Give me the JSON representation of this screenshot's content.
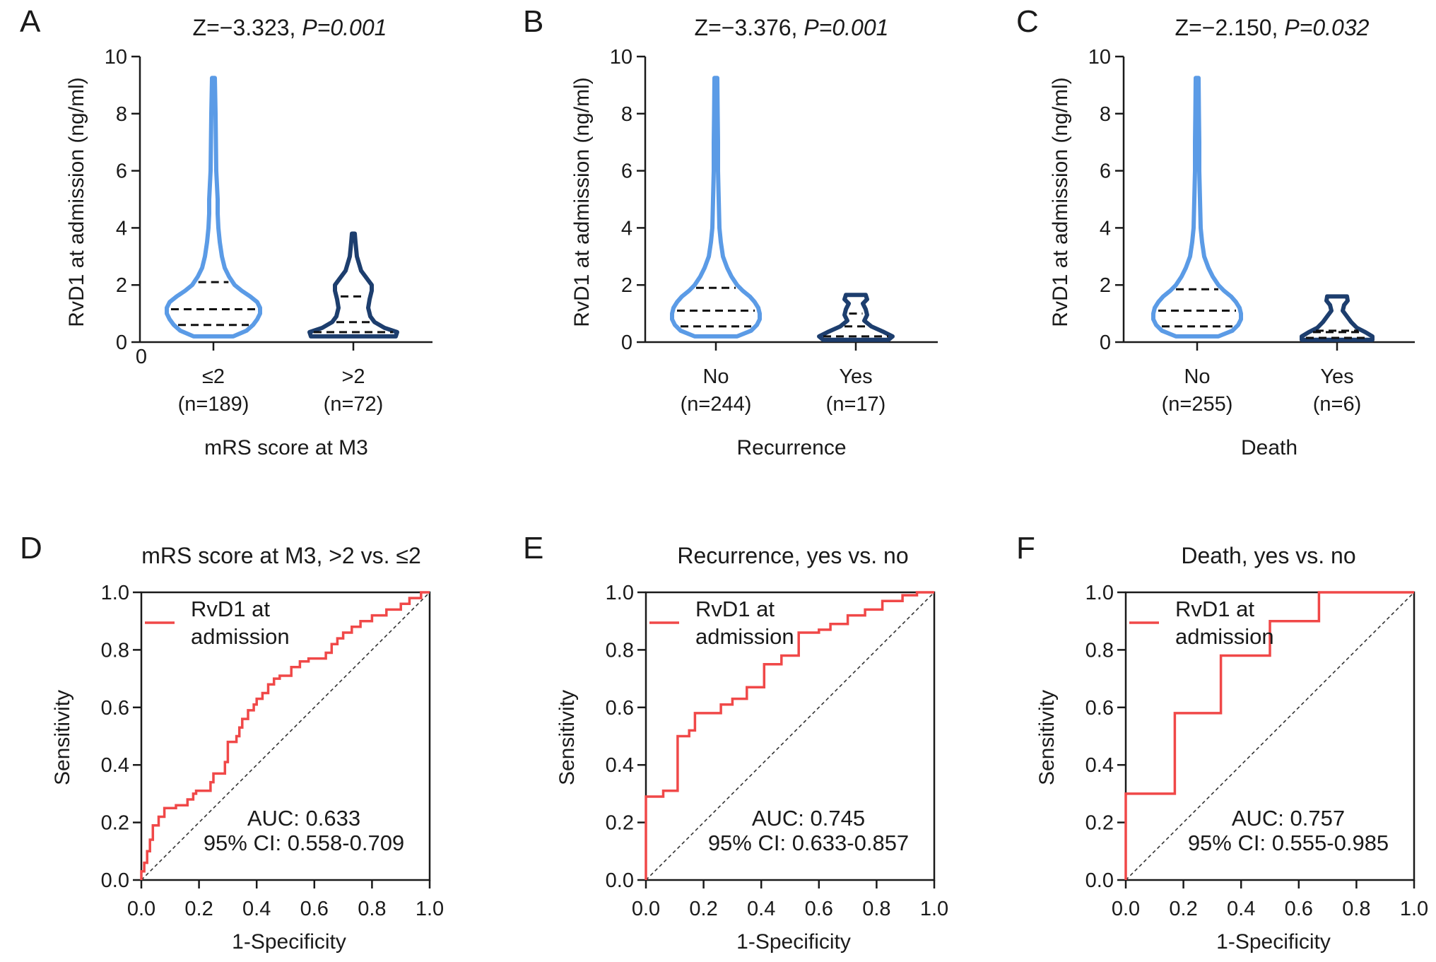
{
  "figure": {
    "colors": {
      "violin_light": "#5b9be6",
      "violin_dark": "#1d3e6e",
      "roc": "#f04848",
      "axis": "#1a1a1a",
      "quartile": "#111111",
      "reference": "#333333"
    }
  },
  "chart_data": [
    {
      "type": "violin",
      "panel": "A",
      "title_prefix": "Z=−3.323, ",
      "title_p": "P=0.001",
      "ylabel": "RvD1 at admission (ng/ml)",
      "xlabel": "mRS score at M3",
      "ylim": [
        0,
        10
      ],
      "yticks": [
        "0",
        "2",
        "4",
        "6",
        "8",
        "10"
      ],
      "origin_label": "0",
      "groups": [
        {
          "label": "≤2",
          "n_label": "(n=189)",
          "color": "light",
          "max": 9.25,
          "q1": 0.6,
          "median": 1.15,
          "q3": 2.1,
          "shape": [
            [
              0.2,
              0.28
            ],
            [
              0.4,
              0.47
            ],
            [
              0.6,
              0.56
            ],
            [
              0.8,
              0.62
            ],
            [
              1.0,
              0.66
            ],
            [
              1.2,
              0.66
            ],
            [
              1.4,
              0.62
            ],
            [
              1.6,
              0.52
            ],
            [
              1.8,
              0.4
            ],
            [
              2.0,
              0.3
            ],
            [
              2.3,
              0.22
            ],
            [
              2.6,
              0.16
            ],
            [
              3.0,
              0.12
            ],
            [
              3.5,
              0.09
            ],
            [
              4.0,
              0.07
            ],
            [
              4.5,
              0.06
            ],
            [
              5.0,
              0.06
            ],
            [
              5.5,
              0.05
            ],
            [
              6.0,
              0.04
            ],
            [
              7.0,
              0.035
            ],
            [
              8.0,
              0.03
            ],
            [
              9.25,
              0.02
            ]
          ]
        },
        {
          "label": ">2",
          "n_label": "(n=72)",
          "color": "dark",
          "max": 3.8,
          "q1": 0.35,
          "median": 0.7,
          "q3": 1.6,
          "shape": [
            [
              0.2,
              0.6
            ],
            [
              0.35,
              0.62
            ],
            [
              0.5,
              0.44
            ],
            [
              0.7,
              0.3
            ],
            [
              0.9,
              0.24
            ],
            [
              1.2,
              0.21
            ],
            [
              1.5,
              0.23
            ],
            [
              1.8,
              0.26
            ],
            [
              2.0,
              0.26
            ],
            [
              2.2,
              0.2
            ],
            [
              2.5,
              0.11
            ],
            [
              3.0,
              0.05
            ],
            [
              3.5,
              0.03
            ],
            [
              3.8,
              0.02
            ]
          ]
        }
      ]
    },
    {
      "type": "violin",
      "panel": "B",
      "title_prefix": "Z=−3.376, ",
      "title_p": "P=0.001",
      "ylabel": "RvD1 at admission (ng/ml)",
      "xlabel": "Recurrence",
      "ylim": [
        0,
        10
      ],
      "yticks": [
        "0",
        "2",
        "4",
        "6",
        "8",
        "10"
      ],
      "groups": [
        {
          "label": "No",
          "n_label": "(n=244)",
          "color": "light",
          "max": 9.25,
          "q1": 0.55,
          "median": 1.1,
          "q3": 1.9,
          "shape": [
            [
              0.2,
              0.3
            ],
            [
              0.4,
              0.5
            ],
            [
              0.6,
              0.58
            ],
            [
              0.8,
              0.62
            ],
            [
              1.0,
              0.62
            ],
            [
              1.2,
              0.6
            ],
            [
              1.4,
              0.55
            ],
            [
              1.6,
              0.48
            ],
            [
              1.8,
              0.38
            ],
            [
              2.0,
              0.3
            ],
            [
              2.3,
              0.22
            ],
            [
              2.6,
              0.16
            ],
            [
              3.0,
              0.1
            ],
            [
              3.5,
              0.07
            ],
            [
              4.0,
              0.05
            ],
            [
              5.0,
              0.04
            ],
            [
              6.0,
              0.03
            ],
            [
              7.0,
              0.03
            ],
            [
              8.0,
              0.025
            ],
            [
              9.25,
              0.02
            ]
          ]
        },
        {
          "label": "Yes",
          "n_label": "(n=17)",
          "color": "dark",
          "max": 1.65,
          "q1": 0.2,
          "median": 0.55,
          "q3": 1.0,
          "shape": [
            [
              0.08,
              0.46
            ],
            [
              0.2,
              0.52
            ],
            [
              0.35,
              0.4
            ],
            [
              0.55,
              0.22
            ],
            [
              0.75,
              0.12
            ],
            [
              0.95,
              0.16
            ],
            [
              1.15,
              0.14
            ],
            [
              1.35,
              0.1
            ],
            [
              1.5,
              0.16
            ],
            [
              1.65,
              0.14
            ]
          ]
        }
      ]
    },
    {
      "type": "violin",
      "panel": "C",
      "title_prefix": "Z=−2.150, ",
      "title_p": "P=0.032",
      "ylabel": "RvD1 at admission (ng/ml)",
      "xlabel": "Death",
      "ylim": [
        0,
        10
      ],
      "yticks": [
        "0",
        "2",
        "4",
        "6",
        "8",
        "10"
      ],
      "groups": [
        {
          "label": "No",
          "n_label": "(n=255)",
          "color": "light",
          "max": 9.25,
          "q1": 0.55,
          "median": 1.1,
          "q3": 1.85,
          "shape": [
            [
              0.2,
              0.3
            ],
            [
              0.4,
              0.5
            ],
            [
              0.6,
              0.58
            ],
            [
              0.8,
              0.62
            ],
            [
              1.0,
              0.62
            ],
            [
              1.2,
              0.6
            ],
            [
              1.4,
              0.55
            ],
            [
              1.6,
              0.48
            ],
            [
              1.8,
              0.38
            ],
            [
              2.0,
              0.3
            ],
            [
              2.3,
              0.22
            ],
            [
              2.6,
              0.16
            ],
            [
              3.0,
              0.1
            ],
            [
              3.5,
              0.07
            ],
            [
              4.0,
              0.05
            ],
            [
              5.0,
              0.04
            ],
            [
              6.0,
              0.03
            ],
            [
              7.0,
              0.03
            ],
            [
              8.0,
              0.025
            ],
            [
              9.25,
              0.02
            ]
          ]
        },
        {
          "label": "Yes",
          "n_label": "(n=6)",
          "color": "dark",
          "max": 1.6,
          "q1": 0.15,
          "median": 0.35,
          "q3": 0.4,
          "shape": [
            [
              0.08,
              0.5
            ],
            [
              0.2,
              0.5
            ],
            [
              0.35,
              0.4
            ],
            [
              0.5,
              0.28
            ],
            [
              0.7,
              0.2
            ],
            [
              0.9,
              0.14
            ],
            [
              1.1,
              0.08
            ],
            [
              1.3,
              0.1
            ],
            [
              1.45,
              0.15
            ],
            [
              1.6,
              0.14
            ]
          ]
        }
      ]
    },
    {
      "type": "roc",
      "panel": "D",
      "title": "mRS score at M3, >2 vs. ≤2",
      "xlabel": "1-Specificity",
      "ylabel": "Sensitivity",
      "ticks": [
        "0.0",
        "0.2",
        "0.4",
        "0.6",
        "0.8",
        "1.0"
      ],
      "legend": [
        "RvD1 at",
        "admission"
      ],
      "auc": "AUC: 0.633",
      "ci": "95% CI: 0.558-0.709",
      "points": [
        [
          0,
          0
        ],
        [
          0,
          0.03
        ],
        [
          0.01,
          0.03
        ],
        [
          0.01,
          0.06
        ],
        [
          0.02,
          0.06
        ],
        [
          0.02,
          0.1
        ],
        [
          0.03,
          0.1
        ],
        [
          0.03,
          0.14
        ],
        [
          0.04,
          0.14
        ],
        [
          0.04,
          0.19
        ],
        [
          0.06,
          0.19
        ],
        [
          0.06,
          0.22
        ],
        [
          0.08,
          0.22
        ],
        [
          0.08,
          0.25
        ],
        [
          0.12,
          0.25
        ],
        [
          0.12,
          0.26
        ],
        [
          0.16,
          0.26
        ],
        [
          0.16,
          0.28
        ],
        [
          0.18,
          0.28
        ],
        [
          0.18,
          0.3
        ],
        [
          0.19,
          0.3
        ],
        [
          0.19,
          0.31
        ],
        [
          0.24,
          0.31
        ],
        [
          0.24,
          0.34
        ],
        [
          0.25,
          0.34
        ],
        [
          0.25,
          0.37
        ],
        [
          0.29,
          0.37
        ],
        [
          0.29,
          0.41
        ],
        [
          0.3,
          0.41
        ],
        [
          0.3,
          0.48
        ],
        [
          0.33,
          0.48
        ],
        [
          0.33,
          0.5
        ],
        [
          0.34,
          0.5
        ],
        [
          0.34,
          0.53
        ],
        [
          0.35,
          0.53
        ],
        [
          0.35,
          0.56
        ],
        [
          0.37,
          0.56
        ],
        [
          0.37,
          0.59
        ],
        [
          0.39,
          0.59
        ],
        [
          0.39,
          0.61
        ],
        [
          0.4,
          0.61
        ],
        [
          0.4,
          0.63
        ],
        [
          0.42,
          0.63
        ],
        [
          0.42,
          0.65
        ],
        [
          0.44,
          0.65
        ],
        [
          0.44,
          0.68
        ],
        [
          0.46,
          0.68
        ],
        [
          0.46,
          0.7
        ],
        [
          0.48,
          0.7
        ],
        [
          0.48,
          0.71
        ],
        [
          0.52,
          0.71
        ],
        [
          0.52,
          0.74
        ],
        [
          0.55,
          0.74
        ],
        [
          0.55,
          0.76
        ],
        [
          0.58,
          0.76
        ],
        [
          0.58,
          0.77
        ],
        [
          0.64,
          0.77
        ],
        [
          0.64,
          0.79
        ],
        [
          0.66,
          0.79
        ],
        [
          0.66,
          0.82
        ],
        [
          0.68,
          0.82
        ],
        [
          0.68,
          0.84
        ],
        [
          0.7,
          0.84
        ],
        [
          0.7,
          0.86
        ],
        [
          0.73,
          0.86
        ],
        [
          0.73,
          0.88
        ],
        [
          0.76,
          0.88
        ],
        [
          0.76,
          0.9
        ],
        [
          0.8,
          0.9
        ],
        [
          0.8,
          0.92
        ],
        [
          0.85,
          0.92
        ],
        [
          0.85,
          0.94
        ],
        [
          0.9,
          0.94
        ],
        [
          0.9,
          0.96
        ],
        [
          0.93,
          0.96
        ],
        [
          0.93,
          0.98
        ],
        [
          0.97,
          0.98
        ],
        [
          0.97,
          1.0
        ],
        [
          1.0,
          1.0
        ]
      ]
    },
    {
      "type": "roc",
      "panel": "E",
      "title": "Recurrence, yes vs. no",
      "xlabel": "1-Specificity",
      "ylabel": "Sensitivity",
      "ticks": [
        "0.0",
        "0.2",
        "0.4",
        "0.6",
        "0.8",
        "1.0"
      ],
      "legend": [
        "RvD1 at",
        "admission"
      ],
      "auc": "AUC: 0.745",
      "ci": "95% CI: 0.633-0.857",
      "points": [
        [
          0,
          0
        ],
        [
          0,
          0.29
        ],
        [
          0.06,
          0.29
        ],
        [
          0.06,
          0.31
        ],
        [
          0.11,
          0.31
        ],
        [
          0.11,
          0.5
        ],
        [
          0.15,
          0.5
        ],
        [
          0.15,
          0.52
        ],
        [
          0.17,
          0.52
        ],
        [
          0.17,
          0.58
        ],
        [
          0.26,
          0.58
        ],
        [
          0.26,
          0.61
        ],
        [
          0.3,
          0.61
        ],
        [
          0.3,
          0.63
        ],
        [
          0.35,
          0.63
        ],
        [
          0.35,
          0.67
        ],
        [
          0.41,
          0.67
        ],
        [
          0.41,
          0.75
        ],
        [
          0.47,
          0.75
        ],
        [
          0.47,
          0.78
        ],
        [
          0.53,
          0.78
        ],
        [
          0.53,
          0.86
        ],
        [
          0.6,
          0.86
        ],
        [
          0.6,
          0.87
        ],
        [
          0.64,
          0.87
        ],
        [
          0.64,
          0.89
        ],
        [
          0.7,
          0.89
        ],
        [
          0.7,
          0.92
        ],
        [
          0.76,
          0.92
        ],
        [
          0.76,
          0.94
        ],
        [
          0.82,
          0.94
        ],
        [
          0.82,
          0.97
        ],
        [
          0.89,
          0.97
        ],
        [
          0.89,
          0.99
        ],
        [
          0.94,
          0.99
        ],
        [
          0.94,
          1.0
        ],
        [
          1.0,
          1.0
        ]
      ]
    },
    {
      "type": "roc",
      "panel": "F",
      "title": "Death, yes vs. no",
      "xlabel": "1-Specificity",
      "ylabel": "Sensitivity",
      "ticks": [
        "0.0",
        "0.2",
        "0.4",
        "0.6",
        "0.8",
        "1.0"
      ],
      "legend": [
        "RvD1 at",
        "admission"
      ],
      "auc": "AUC: 0.757",
      "ci": "95% CI: 0.555-0.985",
      "points": [
        [
          0,
          0
        ],
        [
          0,
          0.3
        ],
        [
          0.17,
          0.3
        ],
        [
          0.17,
          0.58
        ],
        [
          0.33,
          0.58
        ],
        [
          0.33,
          0.78
        ],
        [
          0.5,
          0.78
        ],
        [
          0.5,
          0.9
        ],
        [
          0.67,
          0.9
        ],
        [
          0.67,
          1.0
        ],
        [
          1.0,
          1.0
        ]
      ]
    }
  ]
}
